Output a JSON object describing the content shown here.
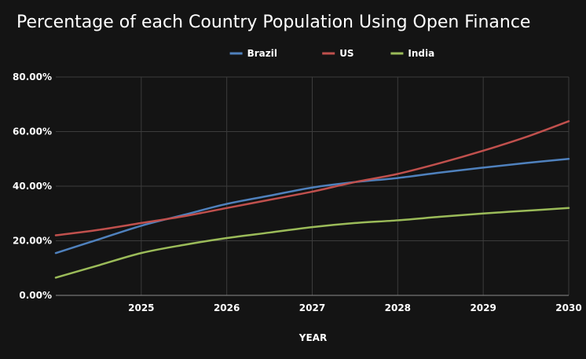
{
  "chart_data": {
    "type": "line",
    "title": "Percentage of each Country Population Using Open Finance",
    "xlabel": "YEAR",
    "ylabel": "",
    "x": [
      2024.0,
      2024.5,
      2025.0,
      2025.5,
      2026.0,
      2026.5,
      2027.0,
      2027.5,
      2028.0,
      2028.5,
      2029.0,
      2029.5,
      2030.0
    ],
    "xlim": [
      2024.0,
      2030.0
    ],
    "ylim": [
      0,
      80
    ],
    "x_ticks": [
      "2025",
      "2026",
      "2027",
      "2028",
      "2029",
      "2030"
    ],
    "x_tick_values": [
      2025,
      2026,
      2027,
      2028,
      2029,
      2030
    ],
    "y_ticks": [
      "0.00%",
      "20.00%",
      "40.00%",
      "60.00%",
      "80.00%"
    ],
    "y_tick_values": [
      0,
      20,
      40,
      60,
      80
    ],
    "grid": true,
    "legend_position": "top-center",
    "series": [
      {
        "name": "Brazil",
        "color": "#4f81bd",
        "values": [
          15.5,
          20.5,
          25.5,
          29.5,
          33.5,
          36.5,
          39.5,
          41.5,
          43.0,
          45.0,
          46.8,
          48.5,
          50.0
        ]
      },
      {
        "name": "US",
        "color": "#c0504d",
        "values": [
          22.0,
          24.0,
          26.5,
          29.0,
          32.0,
          35.0,
          38.0,
          41.5,
          44.5,
          48.5,
          53.0,
          58.0,
          63.8
        ]
      },
      {
        "name": "India",
        "color": "#9bbb59",
        "values": [
          6.5,
          11.0,
          15.5,
          18.5,
          21.0,
          23.0,
          25.0,
          26.5,
          27.5,
          28.8,
          30.0,
          31.0,
          32.0
        ]
      }
    ]
  }
}
